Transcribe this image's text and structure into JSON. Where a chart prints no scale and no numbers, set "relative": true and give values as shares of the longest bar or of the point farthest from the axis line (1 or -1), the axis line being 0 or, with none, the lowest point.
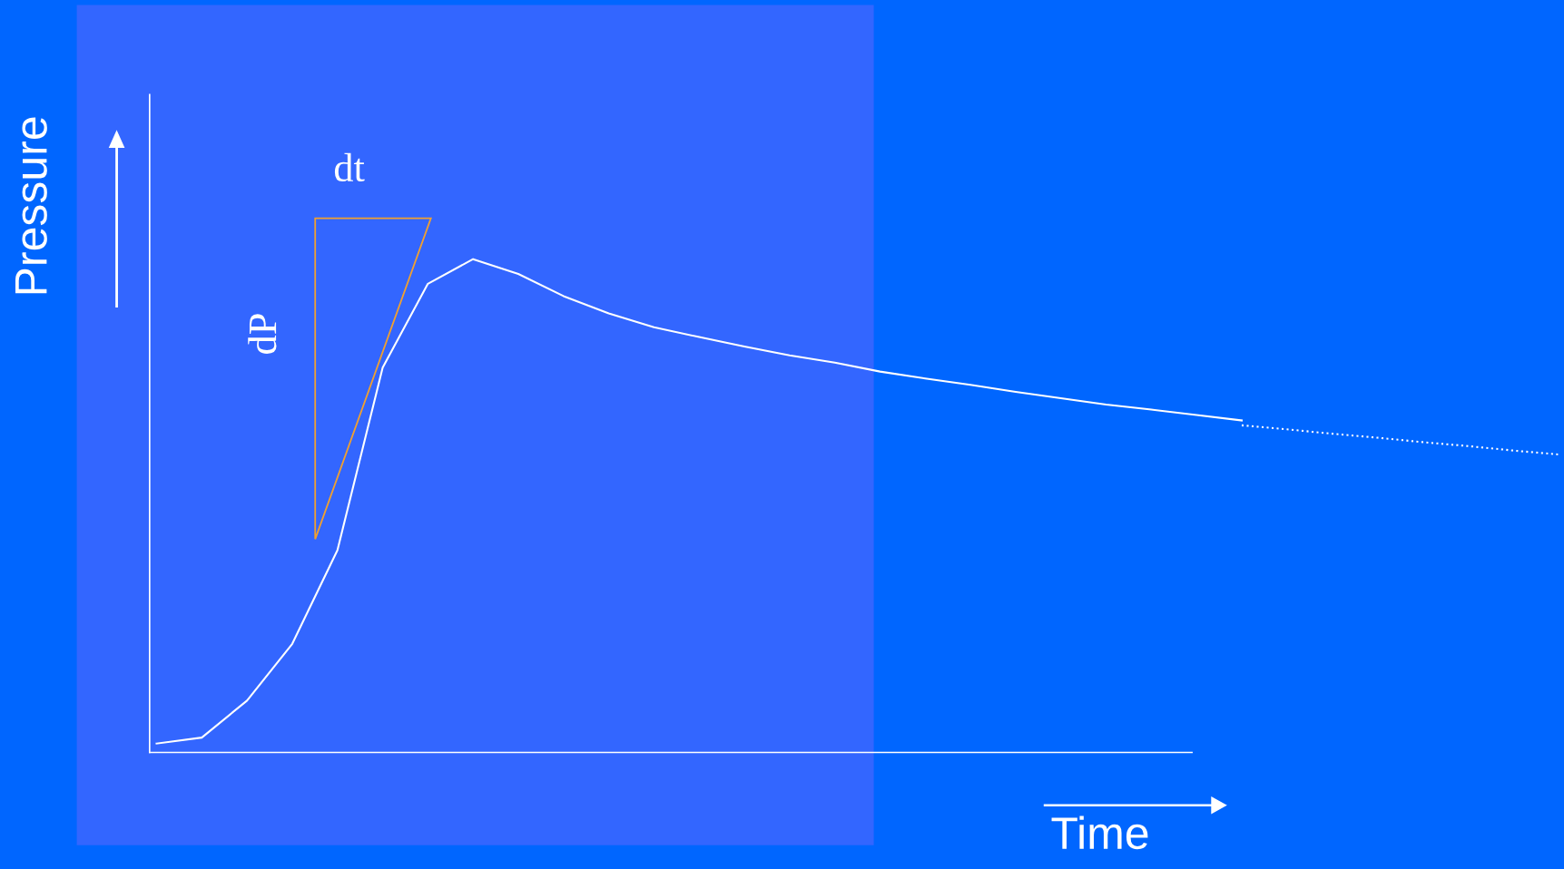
{
  "chart_data": {
    "type": "line",
    "relative": true,
    "xlabel": "Time",
    "ylabel": "Pressure",
    "categories": [
      null,
      null,
      null,
      null,
      null,
      null,
      null,
      null,
      null,
      null,
      null,
      null,
      null,
      null,
      null,
      null,
      null,
      null,
      null,
      null,
      null,
      null,
      null,
      null,
      null,
      null,
      null,
      null,
      null,
      null,
      null,
      null
    ],
    "series": [
      {
        "color": "#ffffff",
        "line_style": "solid",
        "values": [
          0.018,
          0.03,
          0.105,
          0.22,
          0.41,
          0.78,
          0.95,
          1.0,
          0.97,
          0.925,
          0.89,
          0.862,
          0.842,
          0.823,
          0.805,
          0.79,
          0.772,
          0.758,
          0.745,
          0.731,
          0.718,
          0.705,
          0.695,
          0.684,
          0.673,
          null,
          null,
          null,
          null,
          null,
          null,
          null
        ]
      },
      {
        "color": "#ffffff",
        "line_style": "dotted",
        "values": [
          null,
          null,
          null,
          null,
          null,
          null,
          null,
          null,
          null,
          null,
          null,
          null,
          null,
          null,
          null,
          null,
          null,
          null,
          null,
          null,
          null,
          null,
          null,
          null,
          0.663,
          0.655,
          0.646,
          0.638,
          0.629,
          0.621,
          0.612,
          0.604
        ]
      }
    ],
    "annotations": [
      "dt",
      "dP"
    ],
    "grid": false,
    "legend": false,
    "marker": "none"
  }
}
